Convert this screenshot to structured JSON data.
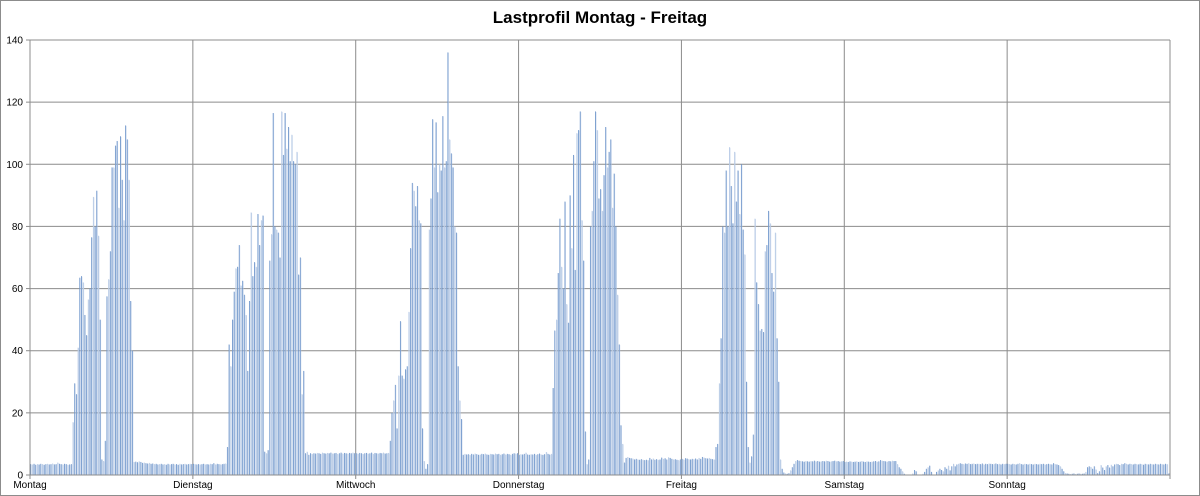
{
  "chart_data": {
    "type": "bar",
    "title": "Lastprofil Montag - Freitag",
    "xlabel": "",
    "ylabel": "",
    "ylim": [
      0,
      140
    ],
    "yticks": [
      0,
      20,
      40,
      60,
      80,
      100,
      120,
      140
    ],
    "grid": true,
    "legend": "none",
    "interval": "15 min",
    "categories": [
      "Montag",
      "Dienstag",
      "Mittwoch",
      "Donnerstag",
      "Freitag",
      "Samstag",
      "Sonntag"
    ],
    "series": [
      {
        "name": "Montag",
        "values": [
          3.5,
          3.4,
          3.6,
          3.3,
          3.5,
          3.4,
          3.6,
          3.5,
          3.3,
          3.5,
          3.6,
          3.4,
          3.5,
          3.7,
          3.4,
          3.5,
          4.0,
          3.6,
          3.5,
          3.4,
          3.6,
          3.5,
          3.3,
          3.4,
          3.5,
          17,
          29.5,
          26,
          41,
          63.5,
          64,
          62,
          51.5,
          45,
          56.5,
          60,
          76.5,
          89.5,
          80,
          91.5,
          77,
          50,
          5,
          4.5,
          11,
          57.5,
          63,
          72,
          99,
          99,
          106,
          107.5,
          86,
          109,
          95,
          82,
          112.5,
          108,
          95,
          56,
          40,
          4.2,
          4.3,
          4.1,
          4.4,
          4.2,
          3.9,
          4.0,
          3.8,
          3.7,
          3.9,
          3.6,
          3.7,
          3.5,
          3.6,
          3.4,
          3.5,
          3.6,
          3.4,
          3.5,
          3.3,
          3.6,
          3.4,
          3.5,
          3.6,
          3.4,
          3.5,
          3.3,
          3.6,
          3.4,
          3.5,
          3.6,
          3.4,
          3.5,
          3.6,
          3.5
        ]
      },
      {
        "name": "Dienstag",
        "values": [
          3.6,
          3.5,
          3.4,
          3.5,
          3.4,
          3.5,
          3.6,
          3.4,
          3.5,
          3.4,
          3.6,
          3.5,
          3.8,
          3.4,
          3.6,
          3.5,
          3.4,
          3.5,
          3.6,
          3.7,
          9,
          42,
          35,
          50,
          59,
          66.5,
          67,
          74,
          61,
          62.5,
          58,
          51.5,
          33.5,
          56,
          84.5,
          64,
          68.5,
          67,
          84,
          74,
          82,
          83.5,
          7.5,
          7,
          8,
          69,
          77.5,
          116.5,
          80,
          79,
          78,
          70,
          117,
          103,
          116.5,
          105,
          112,
          101,
          109.5,
          101,
          100,
          104,
          64.5,
          70,
          26,
          33.5,
          7,
          7.5,
          6.5,
          7,
          6.8,
          7,
          6.9,
          7.1,
          7,
          6.8,
          7.2,
          7,
          6.9,
          7.1,
          7,
          7.2,
          6.9,
          7,
          7.1,
          6.8,
          7,
          7.2,
          6.9,
          7.1,
          7,
          6.9,
          7.1,
          7,
          7.2,
          7
        ]
      },
      {
        "name": "Mittwoch",
        "values": [
          7,
          6.9,
          7.1,
          7,
          6.8,
          7,
          7.1,
          6.9,
          7,
          7.2,
          6.8,
          7.1,
          7,
          6.9,
          7.1,
          7,
          7.2,
          6.9,
          7,
          7.1,
          11,
          20,
          24,
          29,
          15,
          32,
          49.5,
          32,
          31,
          34,
          35,
          52.5,
          73,
          94,
          91.5,
          86.5,
          93,
          82,
          81,
          15,
          4.5,
          2,
          3.5,
          79,
          89,
          114.5,
          99,
          113.5,
          91,
          100,
          98,
          115.5,
          99,
          101,
          136,
          108,
          103.5,
          99,
          80,
          78,
          35,
          24,
          18,
          6.5,
          6.8,
          6.6,
          6.7,
          6.5,
          6.8,
          6.6,
          6.9,
          6.7,
          6.5,
          6.6,
          6.8,
          6.7,
          6.9,
          6.6,
          6.5,
          6.8,
          6.7,
          6.6,
          6.9,
          6.7,
          6.8,
          6.5,
          6.7,
          6.9,
          6.6,
          6.8,
          6.7,
          6.5,
          6.8,
          7,
          6.9,
          7
        ]
      },
      {
        "name": "Donnerstag",
        "values": [
          6.5,
          6.7,
          6.6,
          6.8,
          7.2,
          6.6,
          6.5,
          6.7,
          6.6,
          6.8,
          6.5,
          6.7,
          6.9,
          6.6,
          6.5,
          6.7,
          7.4,
          6.8,
          6.6,
          6.8,
          28,
          46.5,
          50,
          65,
          82.5,
          67,
          60,
          88,
          55,
          49,
          90,
          73,
          103,
          66,
          110,
          111,
          117,
          82,
          69,
          14,
          3.5,
          5,
          80,
          85,
          101,
          117,
          111,
          89,
          92,
          85,
          96.5,
          112,
          99,
          104,
          108,
          86,
          97,
          80,
          58,
          42,
          16,
          10,
          4,
          5.5,
          5.8,
          5.5,
          5.4,
          5.3,
          5,
          5.2,
          5,
          4.9,
          5.1,
          4.9,
          4.8,
          4.9,
          4.8,
          5.5,
          5,
          5.3,
          4.9,
          5.1,
          4.9,
          5,
          5.6,
          5.2,
          5.4,
          5,
          5.7,
          5.5,
          5.2,
          5,
          5.1,
          4.9,
          4.8,
          5
        ]
      },
      {
        "name": "Freitag",
        "values": [
          5.2,
          5,
          5.4,
          5.3,
          5.1,
          5,
          5.2,
          5.1,
          5.3,
          5,
          5.5,
          5.2,
          5.8,
          5.6,
          5.4,
          5.3,
          5.5,
          5.2,
          5.1,
          5,
          9,
          10,
          29.5,
          44,
          80,
          78,
          98,
          80,
          105.5,
          93,
          81,
          104,
          88,
          98,
          84,
          100,
          79,
          71,
          30,
          9,
          4,
          6,
          13,
          82.5,
          62,
          55,
          46.5,
          47,
          46,
          72,
          74,
          85,
          81,
          65,
          59,
          78,
          44,
          30,
          5,
          2,
          0.8,
          0.5,
          0.4,
          0.6,
          1.5,
          2.5,
          3.6,
          4.5,
          4.8,
          4.6,
          4.5,
          4.4,
          4.3,
          4.5,
          4.4,
          4.3,
          4.5,
          4.4,
          4.6,
          4.4,
          4.5,
          4.3,
          4.4,
          4.5,
          4.4,
          4.6,
          4.5,
          4.3,
          4.4,
          4.5,
          4.6,
          4.4,
          4.5,
          4.3,
          4.4,
          4.5
        ]
      },
      {
        "name": "Samstag",
        "values": [
          4.2,
          4.3,
          4.2,
          4.4,
          4.3,
          4.2,
          4.3,
          4.4,
          4.2,
          4.3,
          4.5,
          4.3,
          4.2,
          4.4,
          4.3,
          4.2,
          4.3,
          4.4,
          4.5,
          4.3,
          4.4,
          4.8,
          4.6,
          4.5,
          4.4,
          4.3,
          4.5,
          4.4,
          4.6,
          4.5,
          4.5,
          3.5,
          2.5,
          2,
          1.2,
          0.4,
          0,
          0,
          0,
          0,
          0.5,
          1.6,
          1.2,
          0,
          0,
          0,
          0.4,
          1,
          2,
          2.5,
          3,
          1,
          0,
          0,
          1,
          1.5,
          2,
          1.6,
          1.2,
          2.5,
          2,
          3,
          1.5,
          2.8,
          3.6,
          2.8,
          3.4,
          3.6,
          3.8,
          3.6,
          3.5,
          3.7,
          3.6,
          3.8,
          3.5,
          3.6,
          3.7,
          3.5,
          3.6,
          3.6,
          3.5,
          3.7,
          3.4,
          3.6,
          3.5,
          3.7,
          3.6,
          3.5,
          3.6,
          3.7,
          3.5,
          3.6,
          3.4,
          3.6,
          3.5,
          3.6
        ]
      },
      {
        "name": "Sonntag",
        "values": [
          3.6,
          3.5,
          3.4,
          3.6,
          3.5,
          3.4,
          3.6,
          3.8,
          3.5,
          3.4,
          3.6,
          3.5,
          3.4,
          3.6,
          3.5,
          3.4,
          3.6,
          3.5,
          3.4,
          3.6,
          3.5,
          3.6,
          3.4,
          3.5,
          3.6,
          3.5,
          3.4,
          3.8,
          3.5,
          3.4,
          3.2,
          2.8,
          2,
          1.2,
          0.6,
          0.5,
          0.4,
          0.3,
          0.4,
          0.5,
          0.3,
          0.4,
          0.5,
          0.4,
          0.4,
          0.5,
          1,
          2.5,
          2.8,
          2.6,
          2,
          2.8,
          1.8,
          0.6,
          1.2,
          3.2,
          2.4,
          1.6,
          2.8,
          3.2,
          2.4,
          3.3,
          2.8,
          3.4,
          3.6,
          3.5,
          3.2,
          3.6,
          3.5,
          3.8,
          3.6,
          3.4,
          3.6,
          3.5,
          3.4,
          3.6,
          3.5,
          3.4,
          3.6,
          3.5,
          3.3,
          3.6,
          3.5,
          3.4,
          3.6,
          3.5,
          3.4,
          3.6,
          3.5,
          3.4,
          3.6,
          3.5,
          3.4,
          3.6,
          3.5,
          0.5
        ]
      }
    ],
    "colors": {
      "bar_dark": "#6f96cb",
      "bar_light": "#b8cbe6",
      "grid": "#8c8c8c"
    }
  }
}
